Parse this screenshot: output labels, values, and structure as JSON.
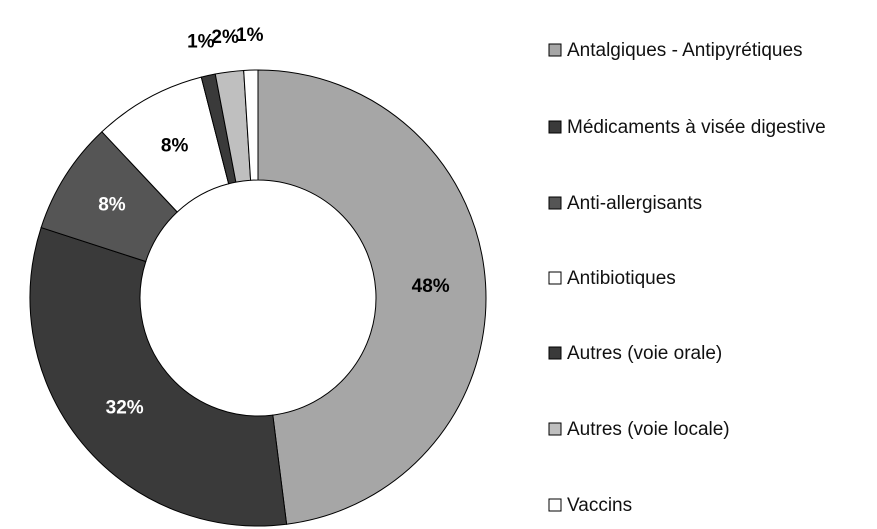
{
  "chart_data": {
    "type": "donut",
    "categories": [
      "Antalgiques - Antipyrétiques",
      "Médicaments à visée digestive",
      "Anti-allergisants",
      "Antibiotiques",
      "Autres (voie orale)",
      "Autres (voie locale)",
      "Vaccins"
    ],
    "values": [
      48,
      32,
      8,
      8,
      1,
      2,
      1
    ],
    "value_labels": [
      "48%",
      "32%",
      "8%",
      "8%",
      "1%",
      "2%",
      "1%"
    ],
    "colors": [
      "#a6a6a6",
      "#3a3a3a",
      "#555555",
      "#ffffff",
      "#3a3a3a",
      "#bfbfbf",
      "#ffffff"
    ],
    "legend": "right"
  }
}
